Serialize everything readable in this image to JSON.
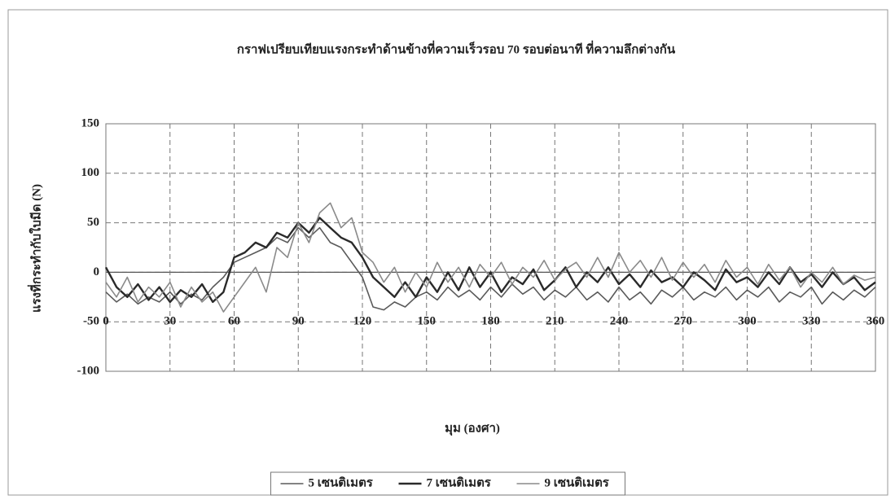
{
  "chart_data": {
    "type": "line",
    "title": "กราฟเปรียบเทียบแรงกระทำด้านข้างที่ความเร็วรอบ 70 รอบต่อนาที ที่ความลึกต่างกัน",
    "x_label": "มุม (องศา)",
    "y_label": "แรงที่กระทำกับใบมีด (N)",
    "x": [
      0,
      5,
      10,
      15,
      20,
      25,
      30,
      35,
      40,
      45,
      50,
      55,
      60,
      65,
      70,
      75,
      80,
      85,
      90,
      95,
      100,
      105,
      110,
      115,
      120,
      125,
      130,
      135,
      140,
      145,
      150,
      155,
      160,
      165,
      170,
      175,
      180,
      185,
      190,
      195,
      200,
      205,
      210,
      215,
      220,
      225,
      230,
      235,
      240,
      245,
      250,
      255,
      260,
      265,
      270,
      275,
      280,
      285,
      290,
      295,
      300,
      305,
      310,
      315,
      320,
      325,
      330,
      335,
      340,
      345,
      350,
      355,
      360
    ],
    "series": [
      {
        "name": "5 เซนติเมตร",
        "color": "#5a5a5a",
        "width": 1.6,
        "values": [
          -20,
          -30,
          -22,
          -32,
          -25,
          -30,
          -20,
          -32,
          -22,
          -28,
          -15,
          -5,
          10,
          15,
          20,
          25,
          35,
          30,
          45,
          35,
          45,
          30,
          25,
          10,
          -5,
          -35,
          -38,
          -30,
          -35,
          -25,
          -20,
          -28,
          -15,
          -25,
          -18,
          -28,
          -15,
          -25,
          -12,
          -22,
          -15,
          -28,
          -18,
          -25,
          -15,
          -28,
          -20,
          -30,
          -15,
          -28,
          -20,
          -32,
          -18,
          -25,
          -15,
          -28,
          -20,
          -25,
          -15,
          -28,
          -18,
          -25,
          -15,
          -30,
          -20,
          -25,
          -15,
          -32,
          -20,
          -28,
          -18,
          -25,
          -15
        ]
      },
      {
        "name": "7 เซนติเมตร",
        "color": "#2a2a2a",
        "width": 2.4,
        "values": [
          5,
          -15,
          -25,
          -12,
          -28,
          -15,
          -30,
          -18,
          -25,
          -12,
          -30,
          -20,
          15,
          20,
          30,
          25,
          40,
          35,
          50,
          40,
          55,
          45,
          35,
          30,
          15,
          -5,
          -15,
          -25,
          -10,
          -25,
          -5,
          -20,
          0,
          -18,
          5,
          -15,
          0,
          -20,
          -5,
          -12,
          3,
          -18,
          -8,
          5,
          -15,
          0,
          -10,
          5,
          -12,
          -2,
          -15,
          2,
          -10,
          -5,
          -15,
          0,
          -8,
          -18,
          3,
          -10,
          -5,
          -15,
          0,
          -12,
          5,
          -10,
          -2,
          -15,
          0,
          -12,
          -5,
          -18,
          -10
        ]
      },
      {
        "name": "9 เซนติเมตร",
        "color": "#8a8a8a",
        "width": 1.6,
        "values": [
          -10,
          -25,
          -5,
          -30,
          -15,
          -25,
          -10,
          -35,
          -15,
          -30,
          -20,
          -40,
          -25,
          -10,
          5,
          -20,
          25,
          15,
          50,
          30,
          60,
          70,
          45,
          55,
          20,
          10,
          -10,
          5,
          -20,
          0,
          -15,
          10,
          -10,
          5,
          -15,
          8,
          -5,
          10,
          -12,
          5,
          -5,
          12,
          -8,
          3,
          10,
          -5,
          15,
          -5,
          20,
          0,
          12,
          -5,
          15,
          -8,
          10,
          -5,
          8,
          -10,
          12,
          -5,
          5,
          -12,
          8,
          -8,
          5,
          -15,
          0,
          -10,
          5,
          -12,
          -3,
          -8,
          -5
        ]
      }
    ],
    "xlim": [
      0,
      360
    ],
    "xticks": [
      0,
      30,
      60,
      90,
      120,
      150,
      180,
      210,
      240,
      270,
      300,
      330,
      360
    ],
    "ylim": [
      -100,
      150
    ],
    "yticks": [
      -100,
      -50,
      0,
      50,
      100,
      150
    ],
    "grid": true,
    "legend": "bottom"
  }
}
